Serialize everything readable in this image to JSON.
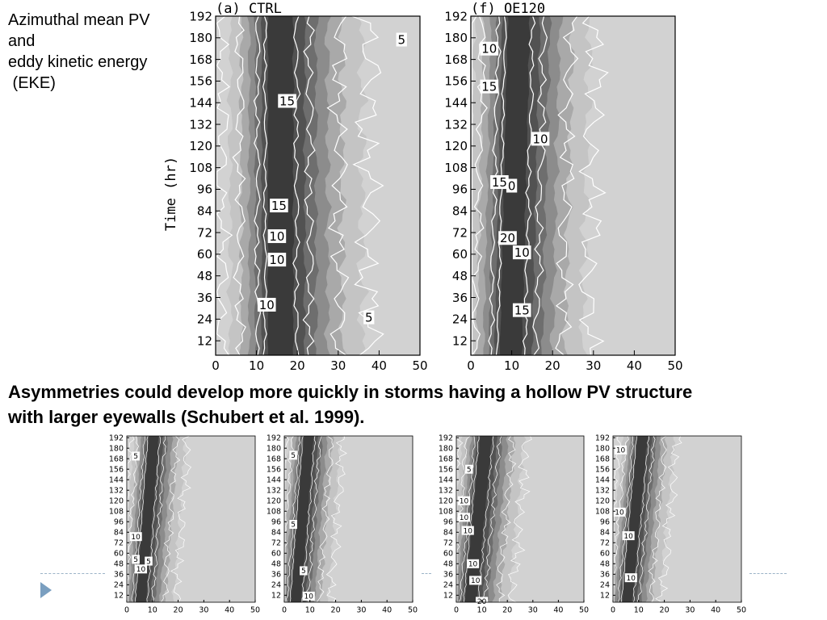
{
  "title_lines": [
    "Azimuthal mean PV",
    "and",
    "eddy kinetic energy",
    " (EKE)"
  ],
  "caption_lines": [
    "Asymmetries could develop more quickly in storms having a hollow PV structure",
    "with larger eyewalls (Schubert et al. 1999)."
  ],
  "colors": {
    "bullet": "#7a9fc0",
    "rule": "#9bb3c7",
    "contour": "#ffffff"
  },
  "chart_data": [
    {
      "type": "heatmap",
      "title": "(a)  CTRL",
      "ylabel": "Time (hr)",
      "xlabel": "",
      "xlim": [
        0,
        50
      ],
      "ylim": [
        4,
        192
      ],
      "xticks": [
        0,
        10,
        20,
        30,
        40,
        50
      ],
      "yticks": [
        12,
        24,
        36,
        48,
        60,
        72,
        84,
        96,
        108,
        120,
        132,
        144,
        156,
        168,
        180,
        192
      ],
      "core_center_km": 15,
      "core_halfwidth_km": 8,
      "drift_km": 0,
      "contour_labels": [
        {
          "text": "5",
          "x": 45.5,
          "y": 179
        },
        {
          "text": "15",
          "x": 17.5,
          "y": 145
        },
        {
          "text": "15",
          "x": 15.5,
          "y": 87
        },
        {
          "text": "10",
          "x": 15,
          "y": 70
        },
        {
          "text": "10",
          "x": 15,
          "y": 57
        },
        {
          "text": "10",
          "x": 12.5,
          "y": 32
        },
        {
          "text": "5",
          "x": 37.5,
          "y": 25
        }
      ]
    },
    {
      "type": "heatmap",
      "title": "(f)  OE120",
      "ylabel": "",
      "xlabel": "",
      "xlim": [
        0,
        50
      ],
      "ylim": [
        4,
        192
      ],
      "xticks": [
        0,
        10,
        20,
        30,
        40,
        50
      ],
      "yticks": [
        12,
        24,
        36,
        48,
        60,
        72,
        84,
        96,
        108,
        120,
        132,
        144,
        156,
        168,
        180,
        192
      ],
      "core_center_km": 9,
      "core_halfwidth_km": 7,
      "drift_km": 2,
      "contour_labels": [
        {
          "text": "10",
          "x": 4.5,
          "y": 174
        },
        {
          "text": "15",
          "x": 4.5,
          "y": 153
        },
        {
          "text": "10",
          "x": 17,
          "y": 124
        },
        {
          "text": "15",
          "x": 7,
          "y": 100
        },
        {
          "text": "0",
          "x": 10,
          "y": 98
        },
        {
          "text": "20",
          "x": 9,
          "y": 69
        },
        {
          "text": "10",
          "x": 12.5,
          "y": 61
        },
        {
          "text": "15",
          "x": 12.5,
          "y": 29
        }
      ]
    },
    {
      "type": "heatmap",
      "title": "",
      "ylabel": "",
      "xlabel": "",
      "xlim": [
        0,
        50
      ],
      "ylim": [
        4,
        194
      ],
      "xticks": [
        0,
        10,
        20,
        30,
        40,
        50
      ],
      "yticks": [
        12,
        24,
        36,
        48,
        60,
        72,
        84,
        96,
        108,
        120,
        132,
        144,
        156,
        168,
        180,
        192
      ],
      "core_center_km": 5,
      "core_halfwidth_km": 5,
      "drift_km": 5,
      "contour_labels": [
        {
          "text": "5",
          "x": 3.5,
          "y": 171
        },
        {
          "text": "10",
          "x": 3.5,
          "y": 79
        },
        {
          "text": "5",
          "x": 3.5,
          "y": 53
        },
        {
          "text": "5",
          "x": 8.5,
          "y": 51
        },
        {
          "text": "10",
          "x": 5.5,
          "y": 42
        }
      ]
    },
    {
      "type": "heatmap",
      "title": "",
      "ylabel": "",
      "xlabel": "",
      "xlim": [
        0,
        50
      ],
      "ylim": [
        4,
        194
      ],
      "xticks": [
        0,
        10,
        20,
        30,
        40,
        50
      ],
      "yticks": [
        12,
        24,
        36,
        48,
        60,
        72,
        84,
        96,
        108,
        120,
        132,
        144,
        156,
        168,
        180,
        192
      ],
      "core_center_km": 4,
      "core_halfwidth_km": 5,
      "drift_km": 5,
      "contour_labels": [
        {
          "text": "5",
          "x": 3.5,
          "y": 172
        },
        {
          "text": "5",
          "x": 3.5,
          "y": 93
        },
        {
          "text": "5",
          "x": 7.5,
          "y": 40
        },
        {
          "text": "10",
          "x": 9.5,
          "y": 11
        }
      ]
    },
    {
      "type": "heatmap",
      "title": "",
      "ylabel": "",
      "xlabel": "",
      "xlim": [
        0,
        50
      ],
      "ylim": [
        4,
        194
      ],
      "xticks": [
        0,
        10,
        20,
        30,
        40,
        50
      ],
      "yticks": [
        12,
        24,
        36,
        48,
        60,
        72,
        84,
        96,
        108,
        120,
        132,
        144,
        156,
        168,
        180,
        192
      ],
      "core_center_km": 5,
      "core_halfwidth_km": 6,
      "drift_km": 6,
      "contour_labels": [
        {
          "text": "5",
          "x": 5,
          "y": 156
        },
        {
          "text": "10",
          "x": 3,
          "y": 120
        },
        {
          "text": "10",
          "x": 3,
          "y": 101
        },
        {
          "text": "10",
          "x": 4.5,
          "y": 86
        },
        {
          "text": "10",
          "x": 6.5,
          "y": 48
        },
        {
          "text": "10",
          "x": 7.5,
          "y": 29
        },
        {
          "text": "20",
          "x": 10,
          "y": 5
        }
      ]
    },
    {
      "type": "heatmap",
      "title": "",
      "ylabel": "",
      "xlabel": "",
      "xlim": [
        0,
        50
      ],
      "ylim": [
        4,
        194
      ],
      "xticks": [
        0,
        10,
        20,
        30,
        40,
        50
      ],
      "yticks": [
        12,
        24,
        36,
        48,
        60,
        72,
        84,
        96,
        108,
        120,
        132,
        144,
        156,
        168,
        180,
        192
      ],
      "core_center_km": 5,
      "core_halfwidth_km": 5,
      "drift_km": 6,
      "contour_labels": [
        {
          "text": "10",
          "x": 3,
          "y": 178
        },
        {
          "text": "10",
          "x": 2.5,
          "y": 107
        },
        {
          "text": "10",
          "x": 6,
          "y": 80
        },
        {
          "text": "10",
          "x": 7,
          "y": 32
        }
      ]
    }
  ]
}
